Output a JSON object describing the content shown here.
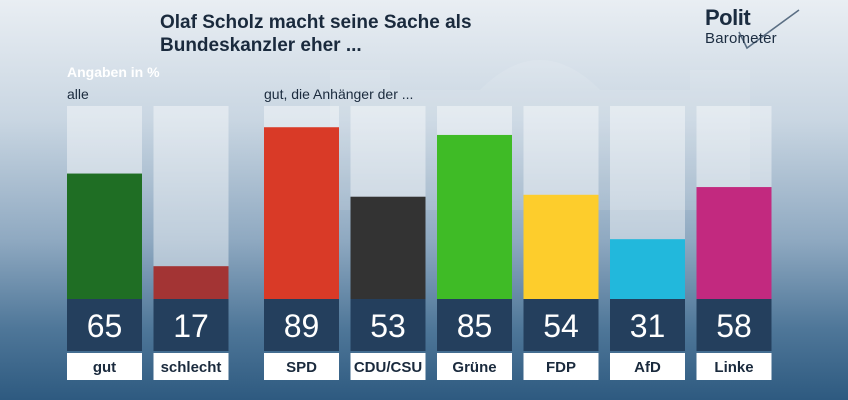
{
  "header": {
    "title_line1": "Olaf Scholz macht seine Sache als",
    "title_line2": "Bundeskanzler eher ...",
    "logo_top": "Polit",
    "logo_bottom": "Barometer"
  },
  "chart_data": {
    "type": "bar",
    "title": "Olaf Scholz macht seine Sache als Bundeskanzler eher ...",
    "unit_note": "Angaben in %",
    "ylim": [
      0,
      100
    ],
    "grid": false,
    "groups": [
      {
        "label": "alle",
        "categories": [
          "gut",
          "schlecht"
        ],
        "values": [
          65,
          17
        ],
        "colors": [
          "#1f6e24",
          "#a33434"
        ]
      },
      {
        "label": "gut, die Anhänger der ...",
        "categories": [
          "SPD",
          "CDU/CSU",
          "Grüne",
          "FDP",
          "AfD",
          "Linke"
        ],
        "values": [
          89,
          53,
          85,
          54,
          31,
          58
        ],
        "colors": [
          "#d93a27",
          "#333333",
          "#3fbb26",
          "#fdcd2c",
          "#22b8dc",
          "#c2297f"
        ]
      }
    ]
  }
}
